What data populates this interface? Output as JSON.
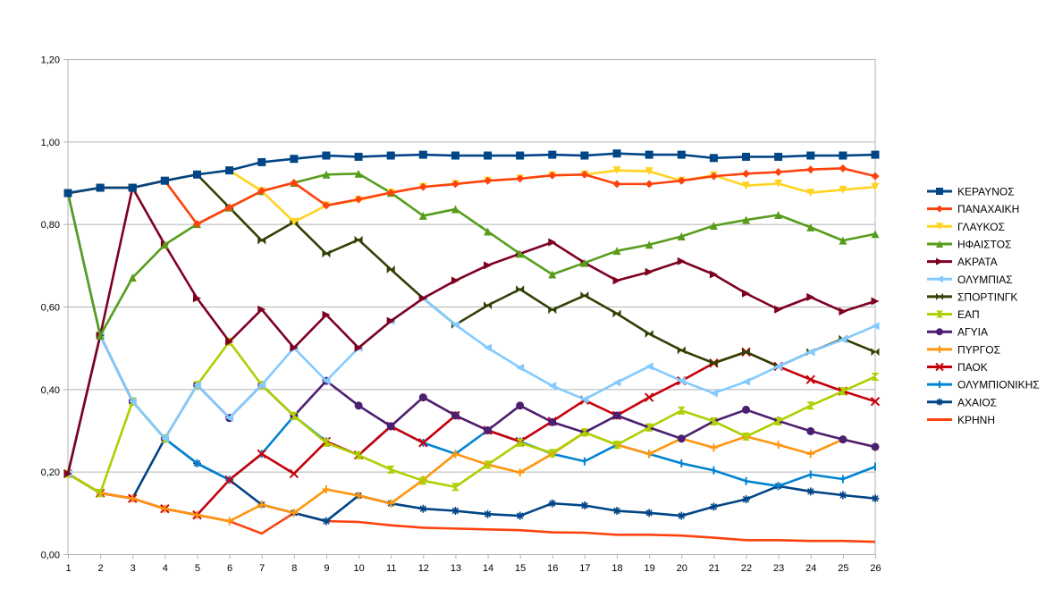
{
  "chart_data": {
    "type": "line",
    "title": "",
    "xlabel": "",
    "ylabel": "",
    "x": [
      1,
      2,
      3,
      4,
      5,
      6,
      7,
      8,
      9,
      10,
      11,
      12,
      13,
      14,
      15,
      16,
      17,
      18,
      19,
      20,
      21,
      22,
      23,
      24,
      25,
      26
    ],
    "ylim": [
      0,
      1.2
    ],
    "yticks": [
      "0,00",
      "0,20",
      "0,40",
      "0,60",
      "0,80",
      "1,00",
      "1,20"
    ],
    "ytick_values": [
      0,
      0.2,
      0.4,
      0.6,
      0.8,
      1.0,
      1.2
    ],
    "grid": true,
    "legend_position": "right",
    "series": [
      {
        "name": "ΚΕΡΑΥΝΟΣ",
        "color": "#004586",
        "marker": "square",
        "values": [
          0.875,
          0.888,
          0.888,
          0.905,
          0.92,
          0.93,
          0.95,
          0.958,
          0.966,
          0.963,
          0.966,
          0.968,
          0.966,
          0.966,
          0.966,
          0.968,
          0.966,
          0.971,
          0.968,
          0.968,
          0.96,
          0.963,
          0.963,
          0.966,
          0.966,
          0.968
        ]
      },
      {
        "name": "ΠΑΝΑΧΑΙΚΗ",
        "color": "#ff420e",
        "marker": "diamond",
        "values": [
          0.875,
          0.888,
          0.888,
          0.905,
          0.8,
          0.84,
          0.88,
          0.9,
          0.845,
          0.86,
          0.876,
          0.89,
          0.897,
          0.905,
          0.91,
          0.918,
          0.92,
          0.897,
          0.897,
          0.905,
          0.916,
          0.922,
          0.926,
          0.932,
          0.935,
          0.916
        ]
      },
      {
        "name": "ΓΛΑΥΚΟΣ",
        "color": "#ffd320",
        "marker": "tri-down",
        "values": [
          0.875,
          0.888,
          0.888,
          0.905,
          0.92,
          0.93,
          0.88,
          0.805,
          0.845,
          0.858,
          0.876,
          0.89,
          0.897,
          0.905,
          0.91,
          0.918,
          0.92,
          0.93,
          0.928,
          0.905,
          0.918,
          0.893,
          0.898,
          0.876,
          0.883,
          0.89
        ]
      },
      {
        "name": "ΗΦΑΙΣΤΟΣ",
        "color": "#579d1c",
        "marker": "tri-up",
        "values": [
          0.875,
          0.53,
          0.67,
          0.75,
          0.8,
          0.84,
          0.88,
          0.9,
          0.92,
          0.922,
          0.876,
          0.82,
          0.836,
          0.782,
          0.728,
          0.678,
          0.706,
          0.735,
          0.75,
          0.77,
          0.796,
          0.81,
          0.822,
          0.792,
          0.76,
          0.776
        ]
      },
      {
        "name": "ΑΚΡΑΤΑ",
        "color": "#7e0021",
        "marker": "tri-right",
        "values": [
          0.195,
          0.53,
          0.888,
          0.75,
          0.62,
          0.515,
          0.593,
          0.5,
          0.58,
          0.5,
          0.565,
          0.62,
          0.663,
          0.7,
          0.728,
          0.756,
          0.706,
          0.663,
          0.684,
          0.71,
          0.678,
          0.632,
          0.593,
          0.623,
          0.588,
          0.613
        ]
      },
      {
        "name": "ΟΛΥΜΠΙΑΣ",
        "color": "#83caff",
        "marker": "tri-left",
        "values": [
          0.195,
          0.53,
          0.37,
          0.28,
          0.41,
          0.33,
          0.41,
          0.5,
          0.42,
          0.5,
          0.565,
          0.62,
          0.556,
          0.5,
          0.452,
          0.408,
          0.375,
          0.416,
          0.455,
          0.42,
          0.39,
          0.418,
          0.455,
          0.49,
          0.52,
          0.553
        ]
      },
      {
        "name": "ΣΠΟΡΤΙΝΓΚ",
        "color": "#314004",
        "marker": "bowtie",
        "values": [
          0.875,
          0.888,
          0.888,
          0.905,
          0.92,
          0.84,
          0.76,
          0.805,
          0.728,
          0.762,
          0.69,
          0.62,
          0.556,
          0.603,
          0.642,
          0.592,
          0.627,
          0.583,
          0.534,
          0.494,
          0.463,
          0.49,
          0.455,
          0.49,
          0.522,
          0.49
        ]
      },
      {
        "name": "ΕΑΠ",
        "color": "#aecf00",
        "marker": "hourglass",
        "values": [
          0.195,
          0.148,
          0.37,
          0.28,
          0.41,
          0.515,
          0.41,
          0.335,
          0.27,
          0.24,
          0.205,
          0.178,
          0.163,
          0.217,
          0.27,
          0.245,
          0.295,
          0.265,
          0.307,
          0.348,
          0.322,
          0.285,
          0.322,
          0.36,
          0.395,
          0.43
        ]
      },
      {
        "name": "ΑΓΥΙΑ",
        "color": "#4b1f6f",
        "marker": "circle",
        "values": [
          0.195,
          0.53,
          0.37,
          0.28,
          0.41,
          0.33,
          0.41,
          0.335,
          0.42,
          0.36,
          0.31,
          0.38,
          0.336,
          0.3,
          0.36,
          0.32,
          0.295,
          0.336,
          0.307,
          0.28,
          0.322,
          0.35,
          0.323,
          0.298,
          0.278,
          0.26
        ]
      },
      {
        "name": "ΠΥΡΓΟΣ",
        "color": "#ff950e",
        "marker": "plus",
        "values": [
          0.195,
          0.148,
          0.135,
          0.11,
          0.095,
          0.08,
          0.12,
          0.1,
          0.157,
          0.142,
          0.123,
          0.18,
          0.243,
          0.217,
          0.198,
          0.243,
          0.295,
          0.265,
          0.243,
          0.28,
          0.258,
          0.285,
          0.265,
          0.243,
          0.278,
          0.26
        ]
      },
      {
        "name": "ΠΑΟΚ",
        "color": "#c5000b",
        "marker": "x",
        "values": [
          0.195,
          0.148,
          0.135,
          0.11,
          0.095,
          0.18,
          0.243,
          0.195,
          0.273,
          0.24,
          0.31,
          0.27,
          0.336,
          0.3,
          0.273,
          0.322,
          0.373,
          0.336,
          0.38,
          0.42,
          0.463,
          0.49,
          0.455,
          0.423,
          0.395,
          0.37
        ]
      },
      {
        "name": "ΟΛΥΜΠΙΟΝΙΚΗΣ",
        "color": "#0084d1",
        "marker": "vbar",
        "values": [
          0.875,
          0.53,
          0.37,
          0.28,
          0.22,
          0.18,
          0.243,
          0.335,
          0.273,
          0.24,
          0.31,
          0.27,
          0.243,
          0.3,
          0.273,
          0.243,
          0.225,
          0.265,
          0.243,
          0.22,
          0.203,
          0.177,
          0.165,
          0.193,
          0.182,
          0.212
        ]
      },
      {
        "name": "ΑΧΑΙΟΣ",
        "color": "#004586",
        "marker": "star",
        "values": [
          0.195,
          0.148,
          0.135,
          0.28,
          0.22,
          0.18,
          0.12,
          0.1,
          0.08,
          0.142,
          0.123,
          0.11,
          0.105,
          0.097,
          0.093,
          0.123,
          0.118,
          0.105,
          0.1,
          0.093,
          0.115,
          0.133,
          0.165,
          0.152,
          0.143,
          0.135
        ]
      },
      {
        "name": "ΚΡΗΝΗ",
        "color": "#ff420e",
        "marker": "none",
        "values": [
          0.195,
          0.148,
          0.135,
          0.11,
          0.095,
          0.08,
          0.05,
          0.1,
          0.08,
          0.078,
          0.07,
          0.064,
          0.062,
          0.06,
          0.058,
          0.053,
          0.052,
          0.047,
          0.047,
          0.045,
          0.04,
          0.034,
          0.034,
          0.032,
          0.032,
          0.03
        ]
      }
    ]
  }
}
